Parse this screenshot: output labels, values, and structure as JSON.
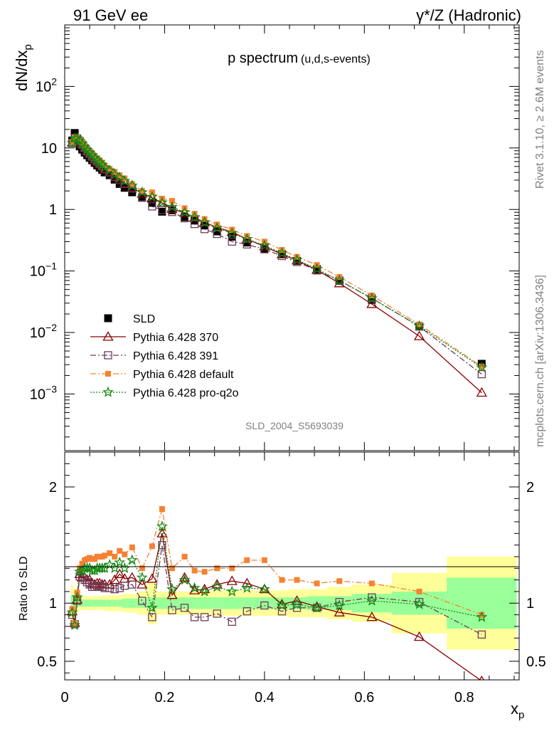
{
  "header": {
    "left": "91 GeV ee",
    "right": "γ*/Z (Hadronic)"
  },
  "side_labels": {
    "rivet": "Rivet 3.1.10, ≥ 2.6M events",
    "mcplots": "mcplots.cern.ch [arXiv:1306.3436]"
  },
  "chart_data": {
    "type": "line",
    "title": "p spectrum",
    "title_sub": "(u,d,s-events)",
    "analysis_id": "SLD_2004_S5693039",
    "xlabel_main": "x",
    "xlabel_sub": "p",
    "ylabel_main": "dN/dx",
    "ylabel_sub": "p",
    "ratio_ylabel": "Ratio to SLD",
    "xlim": [
      0,
      0.91
    ],
    "ylim_top": [
      0.00012,
      1000
    ],
    "yscale_top": "log",
    "ylim_ratio": [
      0.34,
      2.3
    ],
    "x_tick_labels": [
      "0",
      "0.2",
      "0.4",
      "0.6",
      "0.8"
    ],
    "ratio_tick_labels": [
      "0.5",
      "1",
      "2"
    ],
    "legend_position": "lower-left",
    "colors": {
      "data": "#000000",
      "p370": "#8b0000",
      "p391": "#6b3d5a",
      "default": "#f58232",
      "proq2o": "#118811",
      "band_outer": "#ffff99",
      "band_inner": "#99ff99"
    },
    "x": [
      0.015,
      0.02,
      0.025,
      0.03,
      0.035,
      0.04,
      0.045,
      0.05,
      0.055,
      0.06,
      0.065,
      0.07,
      0.075,
      0.08,
      0.09,
      0.1,
      0.11,
      0.12,
      0.135,
      0.155,
      0.175,
      0.195,
      0.215,
      0.24,
      0.26,
      0.28,
      0.305,
      0.335,
      0.365,
      0.4,
      0.435,
      0.465,
      0.505,
      0.55,
      0.615,
      0.71,
      0.835
    ],
    "sld": [
      13.2,
      17.5,
      13.8,
      10.6,
      9.4,
      8.4,
      7.6,
      6.9,
      6.3,
      5.7,
      5.2,
      4.8,
      4.4,
      4.0,
      3.6,
      3.05,
      2.6,
      2.25,
      1.9,
      1.55,
      1.28,
      0.92,
      0.97,
      0.75,
      0.66,
      0.55,
      0.44,
      0.36,
      0.29,
      0.23,
      0.188,
      0.146,
      0.107,
      0.069,
      0.034,
      0.0125,
      0.0031
    ],
    "series": [
      {
        "name": "Pythia 6.428 370",
        "key": "p370",
        "marker": "triangle",
        "dash": "",
        "values": [
          12.2,
          14.5,
          12.2,
          13.0,
          11.4,
          10.0,
          8.9,
          8.1,
          7.3,
          6.6,
          6.1,
          5.6,
          5.1,
          4.6,
          4.1,
          3.6,
          3.2,
          2.7,
          2.3,
          1.8,
          1.55,
          1.27,
          1.02,
          0.88,
          0.73,
          0.62,
          0.51,
          0.43,
          0.33,
          0.25,
          0.186,
          0.148,
          0.104,
          0.063,
          0.029,
          0.0087,
          0.00105
        ],
        "ratio": [
          0.93,
          0.83,
          1.03,
          1.25,
          1.22,
          1.22,
          1.2,
          1.2,
          1.17,
          1.16,
          1.17,
          1.17,
          1.16,
          1.16,
          1.16,
          1.2,
          1.25,
          1.21,
          1.22,
          1.16,
          1.21,
          1.6,
          1.07,
          1.22,
          1.11,
          1.12,
          1.16,
          1.19,
          1.17,
          1.12,
          0.99,
          1.02,
          0.97,
          0.92,
          0.88,
          0.71,
          0.33
        ]
      },
      {
        "name": "Pythia 6.428 391",
        "key": "p391",
        "marker": "square-open",
        "dash": "8,3,2,3",
        "values": [
          12.0,
          14.3,
          14.3,
          13.0,
          11.3,
          10.0,
          8.8,
          8.0,
          7.2,
          6.5,
          6.0,
          5.5,
          5.0,
          4.5,
          4.0,
          3.4,
          3.0,
          2.6,
          2.2,
          1.58,
          1.12,
          0.98,
          0.91,
          0.72,
          0.58,
          0.48,
          0.4,
          0.3,
          0.27,
          0.225,
          0.175,
          0.14,
          0.102,
          0.07,
          0.036,
          0.0125,
          0.0021
        ],
        "ratio": [
          0.9,
          0.82,
          1.02,
          1.23,
          1.22,
          1.2,
          1.18,
          1.16,
          1.14,
          1.14,
          1.15,
          1.15,
          1.14,
          1.13,
          1.13,
          1.12,
          1.13,
          1.15,
          1.16,
          1.02,
          0.88,
          1.5,
          0.94,
          0.96,
          0.88,
          0.88,
          0.91,
          0.84,
          0.93,
          0.98,
          0.93,
          0.96,
          0.96,
          1.01,
          1.05,
          1.01,
          0.73
        ]
      },
      {
        "name": "Pythia 6.428 default",
        "key": "default",
        "marker": "square-filled",
        "dash": "8,3,2,3",
        "values": [
          12.5,
          15.0,
          15.0,
          13.7,
          12.3,
          10.9,
          9.8,
          8.9,
          8.1,
          7.4,
          6.8,
          6.3,
          5.8,
          5.2,
          4.6,
          4.1,
          3.6,
          3.2,
          2.6,
          2.0,
          1.9,
          1.5,
          1.38,
          1.05,
          0.85,
          0.7,
          0.57,
          0.47,
          0.37,
          0.3,
          0.22,
          0.17,
          0.125,
          0.08,
          0.04,
          0.0135,
          0.0028
        ],
        "ratio": [
          0.95,
          0.83,
          1.09,
          1.3,
          1.34,
          1.37,
          1.38,
          1.39,
          1.38,
          1.38,
          1.4,
          1.4,
          1.4,
          1.41,
          1.43,
          1.4,
          1.45,
          1.42,
          1.48,
          1.3,
          1.49,
          1.81,
          1.3,
          1.4,
          1.28,
          1.27,
          1.3,
          1.3,
          1.37,
          1.37,
          1.2,
          1.2,
          1.17,
          1.19,
          1.17,
          1.1,
          0.9
        ]
      },
      {
        "name": "Pythia 6.428 pro-q2o",
        "key": "proq2o",
        "marker": "star",
        "dash": "2,2",
        "values": [
          12.0,
          14.3,
          14.3,
          13.1,
          11.7,
          10.3,
          9.3,
          8.4,
          7.6,
          6.9,
          6.3,
          5.8,
          5.3,
          4.8,
          4.3,
          3.7,
          3.3,
          2.9,
          2.45,
          1.9,
          1.6,
          1.3,
          1.1,
          0.9,
          0.75,
          0.62,
          0.5,
          0.41,
          0.33,
          0.26,
          0.195,
          0.152,
          0.108,
          0.07,
          0.036,
          0.0127,
          0.0027
        ],
        "ratio": [
          0.92,
          0.81,
          1.05,
          1.27,
          1.28,
          1.3,
          1.3,
          1.3,
          1.28,
          1.28,
          1.3,
          1.3,
          1.3,
          1.3,
          1.33,
          1.3,
          1.35,
          1.3,
          1.37,
          1.22,
          0.96,
          1.66,
          1.12,
          1.2,
          1.13,
          1.1,
          1.14,
          1.1,
          1.13,
          1.12,
          0.98,
          0.99,
          0.96,
          0.98,
          1.02,
          0.99,
          0.88
        ]
      }
    ],
    "band_edges": [
      0.012,
      0.017,
      0.022,
      0.027,
      0.032,
      0.037,
      0.042,
      0.047,
      0.052,
      0.057,
      0.062,
      0.067,
      0.072,
      0.077,
      0.085,
      0.095,
      0.105,
      0.115,
      0.125,
      0.145,
      0.165,
      0.185,
      0.205,
      0.225,
      0.255,
      0.265,
      0.295,
      0.315,
      0.355,
      0.375,
      0.425,
      0.445,
      0.485,
      0.525,
      0.575,
      0.655,
      0.765,
      0.905
    ],
    "band_outer": [
      0.16,
      0.12,
      0.08,
      0.07,
      0.06,
      0.06,
      0.06,
      0.06,
      0.06,
      0.06,
      0.06,
      0.06,
      0.06,
      0.07,
      0.07,
      0.07,
      0.07,
      0.08,
      0.08,
      0.1,
      0.18,
      0.1,
      0.1,
      0.1,
      0.1,
      0.1,
      0.11,
      0.11,
      0.11,
      0.11,
      0.11,
      0.12,
      0.12,
      0.14,
      0.16,
      0.26,
      0.4
    ],
    "band_inner": [
      0.07,
      0.05,
      0.04,
      0.03,
      0.03,
      0.03,
      0.03,
      0.03,
      0.03,
      0.03,
      0.03,
      0.03,
      0.03,
      0.03,
      0.03,
      0.03,
      0.03,
      0.04,
      0.04,
      0.04,
      0.05,
      0.05,
      0.05,
      0.05,
      0.05,
      0.05,
      0.05,
      0.05,
      0.05,
      0.05,
      0.05,
      0.05,
      0.06,
      0.06,
      0.08,
      0.1,
      0.22
    ]
  }
}
